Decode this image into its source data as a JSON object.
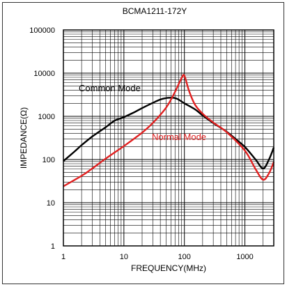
{
  "chart_data": {
    "type": "line",
    "title": "BCMA1211-172Y",
    "xlabel": "FREQUENCY(MHz)",
    "ylabel": "IMPEDANCE(Ω)",
    "x_scale": "log",
    "y_scale": "log",
    "xlim": [
      1,
      3000
    ],
    "ylim": [
      1,
      100000
    ],
    "x_tick_labels": [
      "1",
      "10",
      "100",
      "1000"
    ],
    "y_tick_labels": [
      "1",
      "10",
      "100",
      "1000",
      "10000",
      "100000"
    ],
    "grid": true,
    "series": [
      {
        "name": "Common Mode",
        "color": "#000000",
        "x": [
          1,
          1.5,
          2,
          3,
          5,
          7,
          10,
          15,
          20,
          30,
          40,
          50,
          60,
          70,
          80,
          100,
          150,
          200,
          300,
          500,
          700,
          1000,
          1500,
          2000,
          2500,
          3000
        ],
        "y": [
          92,
          150,
          215,
          340,
          560,
          790,
          960,
          1250,
          1550,
          2050,
          2450,
          2650,
          2700,
          2650,
          2450,
          2000,
          1450,
          1050,
          700,
          440,
          300,
          195,
          100,
          62,
          100,
          190
        ]
      },
      {
        "name": "Normal Mode",
        "color": "#e02020",
        "x": [
          1,
          2,
          3,
          5,
          10,
          20,
          30,
          50,
          70,
          90,
          100,
          120,
          150,
          200,
          300,
          500,
          1000,
          1500,
          2000,
          2500,
          3000
        ],
        "y": [
          24,
          42,
          62,
          105,
          205,
          420,
          700,
          1600,
          3700,
          7700,
          8700,
          3800,
          1850,
          1150,
          720,
          430,
          160,
          60,
          34,
          48,
          88
        ]
      }
    ]
  }
}
